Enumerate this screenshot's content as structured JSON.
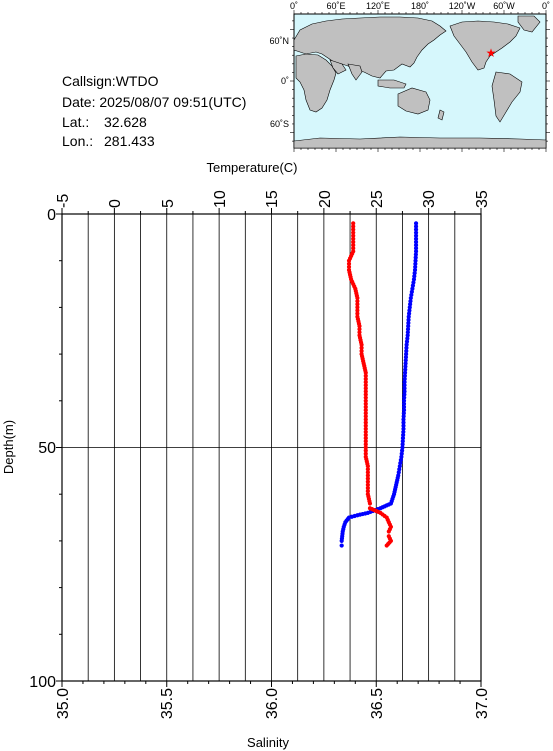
{
  "info": {
    "callsign": "Callsign:WTDO",
    "date": "Date:  2025/08/07 09:51(UTC)",
    "lat_label": "Lat.:",
    "lat_value": "32.628",
    "lon_label": "Lon.:",
    "lon_value": "281.433"
  },
  "map": {
    "top_labels": [
      "0˚",
      "60˚E",
      "120˚E",
      "180˚",
      "120˚W",
      "60˚W",
      "0˚"
    ],
    "left_labels": [
      "60˚N",
      "0˚",
      "60˚S"
    ],
    "ocean_color": "#d6f7fc",
    "land_color": "#c0c0c0",
    "marker_color": "#ff0000",
    "station": {
      "lat": 32.628,
      "lon": 281.433
    }
  },
  "chart_data": {
    "type": "scatter",
    "title": "",
    "ylabel": "Depth(m)",
    "ylim": [
      0,
      100
    ],
    "y_ticks": [
      "0",
      "50",
      "100"
    ],
    "grid": true,
    "top_axis": {
      "label": "Temperature(C)",
      "range": [
        -5,
        35
      ],
      "ticks": [
        "-5",
        "0",
        "5",
        "10",
        "15",
        "20",
        "25",
        "30",
        "35"
      ]
    },
    "bottom_axis": {
      "label": "Salinity",
      "range": [
        35.0,
        37.0
      ],
      "ticks": [
        "35.0",
        "35.5",
        "36.0",
        "36.5",
        "37.0"
      ]
    },
    "series": [
      {
        "quantity": "temperature",
        "color": "#0000ff",
        "points": [
          [
            28.8,
            2
          ],
          [
            28.8,
            4
          ],
          [
            28.8,
            6
          ],
          [
            28.8,
            8
          ],
          [
            28.75,
            10
          ],
          [
            28.7,
            12
          ],
          [
            28.6,
            14
          ],
          [
            28.45,
            16
          ],
          [
            28.3,
            18
          ],
          [
            28.2,
            20
          ],
          [
            28.1,
            22
          ],
          [
            28.05,
            24
          ],
          [
            28.0,
            26
          ],
          [
            27.9,
            28
          ],
          [
            27.85,
            30
          ],
          [
            27.8,
            32
          ],
          [
            27.75,
            34
          ],
          [
            27.7,
            36
          ],
          [
            27.7,
            38
          ],
          [
            27.65,
            40
          ],
          [
            27.65,
            42
          ],
          [
            27.6,
            44
          ],
          [
            27.6,
            46
          ],
          [
            27.55,
            48
          ],
          [
            27.5,
            50
          ],
          [
            27.4,
            52
          ],
          [
            27.25,
            54
          ],
          [
            27.1,
            56
          ],
          [
            26.9,
            58
          ],
          [
            26.7,
            60
          ],
          [
            26.4,
            62
          ],
          [
            25.4,
            63
          ],
          [
            24.2,
            64
          ],
          [
            23.2,
            64.5
          ],
          [
            22.4,
            65
          ],
          [
            22.05,
            66
          ],
          [
            21.9,
            67
          ],
          [
            21.8,
            68
          ],
          [
            21.75,
            69
          ],
          [
            21.7,
            70
          ],
          [
            21.7,
            71
          ]
        ]
      },
      {
        "quantity": "salinity",
        "color": "#ff0000",
        "points": [
          [
            36.39,
            2
          ],
          [
            36.39,
            4
          ],
          [
            36.39,
            6
          ],
          [
            36.39,
            8
          ],
          [
            36.37,
            10
          ],
          [
            36.37,
            12
          ],
          [
            36.38,
            14
          ],
          [
            36.4,
            16
          ],
          [
            36.41,
            18
          ],
          [
            36.41,
            20
          ],
          [
            36.41,
            22
          ],
          [
            36.42,
            24
          ],
          [
            36.42,
            26
          ],
          [
            36.43,
            28
          ],
          [
            36.43,
            30
          ],
          [
            36.44,
            32
          ],
          [
            36.45,
            34
          ],
          [
            36.45,
            36
          ],
          [
            36.45,
            38
          ],
          [
            36.45,
            40
          ],
          [
            36.45,
            42
          ],
          [
            36.45,
            44
          ],
          [
            36.45,
            46
          ],
          [
            36.45,
            48
          ],
          [
            36.45,
            50
          ],
          [
            36.45,
            52
          ],
          [
            36.46,
            54
          ],
          [
            36.46,
            56
          ],
          [
            36.46,
            58
          ],
          [
            36.46,
            60
          ],
          [
            36.47,
            62
          ],
          [
            36.47,
            63
          ],
          [
            36.52,
            64
          ],
          [
            36.55,
            65
          ],
          [
            36.56,
            66
          ],
          [
            36.57,
            67
          ],
          [
            36.56,
            68
          ],
          [
            36.56,
            69
          ],
          [
            36.57,
            70
          ],
          [
            36.55,
            71
          ]
        ]
      }
    ]
  }
}
